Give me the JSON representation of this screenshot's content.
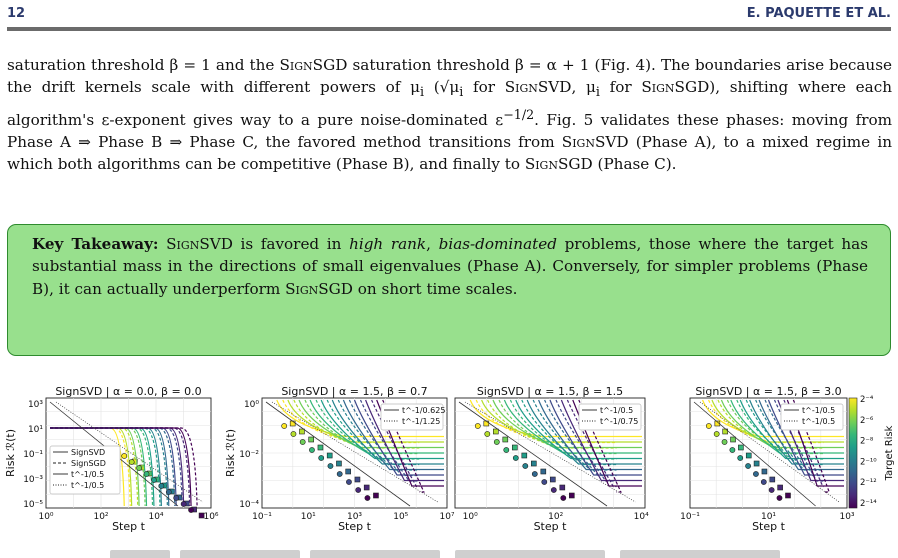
{
  "header": {
    "page_number": "12",
    "authors": "E. PAQUETTE ET AL."
  },
  "paragraph": {
    "l1": "saturation threshold β = 1 and the ",
    "l1b": " saturation threshold β = α + 1 (Fig. 4). The",
    "l2": "boundaries arise because the drift kernels scale with different powers of μ",
    "l2b": " (√μ",
    "l2c": " for ",
    "l2d": ", μ",
    "l3": "for ",
    "l3b": "), shifting where each algorithm's ε-exponent gives way to a pure noise-dominated",
    "l4": "ε",
    "l4b": ". Fig. 5 validates these phases: moving from Phase A ⇒ Phase B ⇒ Phase C, the favored",
    "l5": "method transitions from ",
    "l5b": " (Phase A), to a mixed regime in which both algorithms",
    "l6": "can be competitive (Phase B), and finally to ",
    "l6b": " (Phase C).",
    "signsvd": "SignSVD",
    "signsgd": "SignSGD",
    "exp": "−1/2",
    "sub_i": "i"
  },
  "takeaway": {
    "label": "Key Takeaway:",
    "t1": " is favored in ",
    "t1i": "high rank",
    "t1c": ", ",
    "t1i2": "bias-dominated",
    "t1d": " problems, those where",
    "t2": "the target has substantial mass in the directions of small eigenvalues (Phase A). Conversely,",
    "t3": "for simpler problems (Phase B), it can actually underperform ",
    "t3b": " on short time",
    "t4": "scales."
  },
  "figure": {
    "panels": [
      {
        "title": "SignSVD | α = 0.0, β = 0.0",
        "ylabel": "Risk ℛ(t)",
        "xlabel": "Step t",
        "xticks": [
          "10⁰",
          "10²",
          "10⁴",
          "10⁶"
        ],
        "yticks": [
          "10³",
          "10¹",
          "10⁻¹",
          "10⁻³",
          "10⁻⁵"
        ],
        "legend": [
          "SignSVD",
          "SignSGD",
          "t^-1/0.5",
          "t^-1/0.5"
        ]
      },
      {
        "title": "SignSVD | α = 1.5, β = 0.7",
        "ylabel": "Risk ℛ(t)",
        "xlabel": "Step t",
        "xticks": [
          "10⁻¹",
          "10¹",
          "10³",
          "10⁵",
          "10⁷"
        ],
        "yticks": [
          "10⁰",
          "10⁻²",
          "10⁻⁴"
        ],
        "legend": [
          "t^-1/0.625",
          "t^-1/1.25"
        ]
      },
      {
        "title": "SignSVD | α = 1.5, β = 1.5",
        "ylabel": "",
        "xlabel": "Step t",
        "xticks": [
          "10⁰",
          "10²",
          "10⁴"
        ],
        "yticks": [],
        "legend": [
          "t^-1/0.5",
          "t^-1/0.75"
        ]
      },
      {
        "title": "SignSVD | α = 1.5, β = 3.0",
        "ylabel": "",
        "xlabel": "Step t",
        "xticks": [
          "10⁻¹",
          "10¹",
          "10³"
        ],
        "yticks": [],
        "legend": [
          "t^-1/0.5",
          "t^-1/0.5"
        ]
      }
    ],
    "colorbar": {
      "label": "Target Risk",
      "ticks": [
        "2⁻⁴",
        "2⁻⁶",
        "2⁻⁸",
        "2⁻¹⁰",
        "2⁻¹²",
        "2⁻¹⁴"
      ]
    },
    "palette": [
      "#fde725",
      "#b5de2b",
      "#6ece58",
      "#35b779",
      "#1f9e89",
      "#26828e",
      "#31688e",
      "#3e4989",
      "#482878",
      "#440154"
    ]
  }
}
